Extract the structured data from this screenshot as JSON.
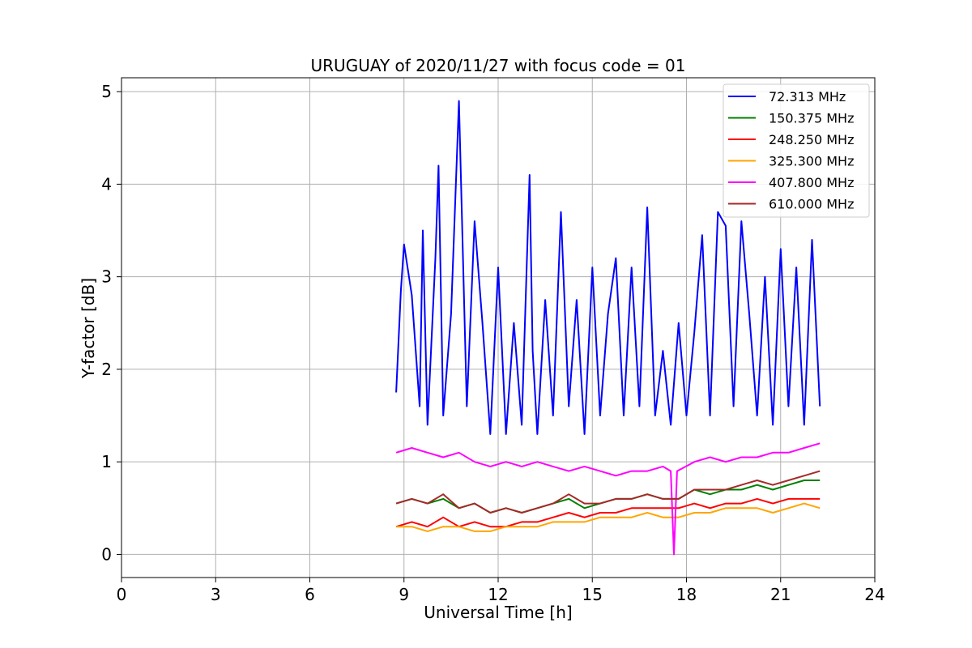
{
  "chart_data": {
    "type": "line",
    "title": "URUGUAY of 2020/11/27 with focus code = 01",
    "xlabel": "Universal Time [h]",
    "ylabel": "Y-factor [dB]",
    "xlim": [
      0,
      24
    ],
    "ylim": [
      -0.25,
      5.15
    ],
    "xticks": [
      0,
      3,
      6,
      9,
      12,
      15,
      18,
      21,
      24
    ],
    "yticks": [
      0,
      1,
      2,
      3,
      4,
      5
    ],
    "grid": true,
    "legend_position": "top-right",
    "series": [
      {
        "name": " 72.313 MHz",
        "color": "#0000ff",
        "x": [
          8.75,
          8.9,
          9.0,
          9.25,
          9.5,
          9.6,
          9.75,
          10.0,
          10.1,
          10.25,
          10.5,
          10.75,
          11.0,
          11.25,
          11.5,
          11.75,
          12.0,
          12.25,
          12.5,
          12.75,
          13.0,
          13.1,
          13.25,
          13.5,
          13.75,
          14.0,
          14.25,
          14.5,
          14.75,
          15.0,
          15.25,
          15.5,
          15.75,
          16.0,
          16.25,
          16.5,
          16.75,
          17.0,
          17.25,
          17.5,
          17.75,
          18.0,
          18.25,
          18.5,
          18.75,
          19.0,
          19.25,
          19.5,
          19.75,
          20.0,
          20.25,
          20.5,
          20.75,
          21.0,
          21.25,
          21.5,
          21.75,
          22.0,
          22.25
        ],
        "y": [
          1.75,
          2.85,
          3.35,
          2.8,
          1.6,
          3.5,
          1.4,
          3.2,
          4.2,
          1.5,
          2.6,
          4.9,
          1.6,
          3.6,
          2.5,
          1.3,
          3.1,
          1.3,
          2.5,
          1.4,
          4.1,
          2.2,
          1.3,
          2.75,
          1.5,
          3.7,
          1.6,
          2.75,
          1.3,
          3.1,
          1.5,
          2.6,
          3.2,
          1.5,
          3.1,
          1.6,
          3.75,
          1.5,
          2.2,
          1.4,
          2.5,
          1.5,
          2.4,
          3.45,
          1.5,
          3.7,
          3.55,
          1.6,
          3.6,
          2.6,
          1.5,
          3.0,
          1.4,
          3.3,
          1.6,
          3.1,
          1.4,
          3.4,
          1.6
        ]
      },
      {
        "name": "150.375 MHz",
        "color": "#008000",
        "x": [
          8.75,
          9.25,
          9.75,
          10.25,
          10.75,
          11.25,
          11.75,
          12.25,
          12.75,
          13.25,
          13.75,
          14.25,
          14.75,
          15.25,
          15.75,
          16.25,
          16.75,
          17.25,
          17.75,
          18.25,
          18.75,
          19.25,
          19.75,
          20.25,
          20.75,
          21.25,
          21.75,
          22.25
        ],
        "y": [
          0.55,
          0.6,
          0.55,
          0.6,
          0.5,
          0.55,
          0.45,
          0.5,
          0.45,
          0.5,
          0.55,
          0.6,
          0.5,
          0.55,
          0.6,
          0.6,
          0.65,
          0.6,
          0.6,
          0.7,
          0.65,
          0.7,
          0.7,
          0.75,
          0.7,
          0.75,
          0.8,
          0.8
        ]
      },
      {
        "name": "248.250 MHz",
        "color": "#ff0000",
        "x": [
          8.75,
          9.25,
          9.75,
          10.25,
          10.75,
          11.25,
          11.75,
          12.25,
          12.75,
          13.25,
          13.75,
          14.25,
          14.75,
          15.25,
          15.75,
          16.25,
          16.75,
          17.25,
          17.75,
          18.25,
          18.75,
          19.25,
          19.75,
          20.25,
          20.75,
          21.25,
          21.75,
          22.25
        ],
        "y": [
          0.3,
          0.35,
          0.3,
          0.4,
          0.3,
          0.35,
          0.3,
          0.3,
          0.35,
          0.35,
          0.4,
          0.45,
          0.4,
          0.45,
          0.45,
          0.5,
          0.5,
          0.5,
          0.5,
          0.55,
          0.5,
          0.55,
          0.55,
          0.6,
          0.55,
          0.6,
          0.6,
          0.6
        ]
      },
      {
        "name": "325.300 MHz",
        "color": "#ffa500",
        "x": [
          8.75,
          9.25,
          9.75,
          10.25,
          10.75,
          11.25,
          11.75,
          12.25,
          12.75,
          13.25,
          13.75,
          14.25,
          14.75,
          15.25,
          15.75,
          16.25,
          16.75,
          17.25,
          17.75,
          18.25,
          18.75,
          19.25,
          19.75,
          20.25,
          20.75,
          21.25,
          21.75,
          22.25
        ],
        "y": [
          0.3,
          0.3,
          0.25,
          0.3,
          0.3,
          0.25,
          0.25,
          0.3,
          0.3,
          0.3,
          0.35,
          0.35,
          0.35,
          0.4,
          0.4,
          0.4,
          0.45,
          0.4,
          0.4,
          0.45,
          0.45,
          0.5,
          0.5,
          0.5,
          0.45,
          0.5,
          0.55,
          0.5
        ]
      },
      {
        "name": "407.800 MHz",
        "color": "#ff00ff",
        "x": [
          8.75,
          9.25,
          9.75,
          10.25,
          10.75,
          11.25,
          11.75,
          12.25,
          12.75,
          13.25,
          13.75,
          14.25,
          14.75,
          15.25,
          15.75,
          16.25,
          16.75,
          17.25,
          17.5,
          17.6,
          17.7,
          18.25,
          18.75,
          19.25,
          19.75,
          20.25,
          20.75,
          21.25,
          21.75,
          22.25
        ],
        "y": [
          1.1,
          1.15,
          1.1,
          1.05,
          1.1,
          1.0,
          0.95,
          1.0,
          0.95,
          1.0,
          0.95,
          0.9,
          0.95,
          0.9,
          0.85,
          0.9,
          0.9,
          0.95,
          0.9,
          0.0,
          0.9,
          1.0,
          1.05,
          1.0,
          1.05,
          1.05,
          1.1,
          1.1,
          1.15,
          1.2
        ]
      },
      {
        "name": "610.000 MHz",
        "color": "#a52a2a",
        "x": [
          8.75,
          9.25,
          9.75,
          10.25,
          10.75,
          11.25,
          11.75,
          12.25,
          12.75,
          13.25,
          13.75,
          14.25,
          14.75,
          15.25,
          15.75,
          16.25,
          16.75,
          17.25,
          17.75,
          18.25,
          18.75,
          19.25,
          19.75,
          20.25,
          20.75,
          21.25,
          21.75,
          22.25
        ],
        "y": [
          0.55,
          0.6,
          0.55,
          0.65,
          0.5,
          0.55,
          0.45,
          0.5,
          0.45,
          0.5,
          0.55,
          0.65,
          0.55,
          0.55,
          0.6,
          0.6,
          0.65,
          0.6,
          0.6,
          0.7,
          0.7,
          0.7,
          0.75,
          0.8,
          0.75,
          0.8,
          0.85,
          0.9
        ]
      }
    ]
  }
}
